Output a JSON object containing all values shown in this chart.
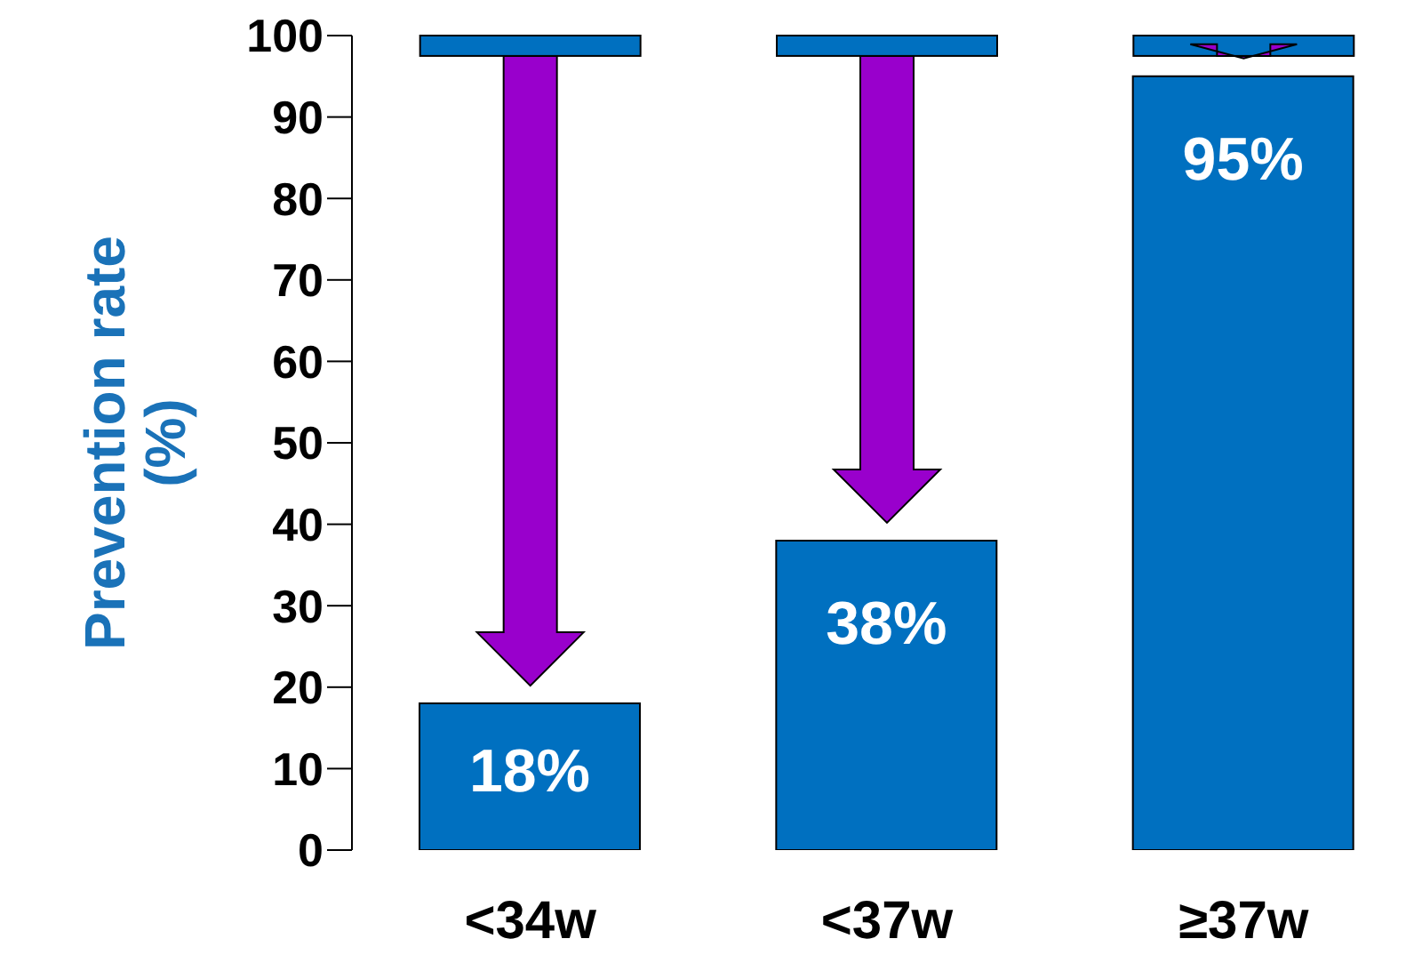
{
  "chart_data": {
    "type": "bar",
    "ylabel": "Prevention rate (%)",
    "categories": [
      "<34w",
      "<37w",
      "≥37w"
    ],
    "series": [
      {
        "color": "#0070c0",
        "values": [
          18,
          38,
          95
        ],
        "value_labels": [
          "18%",
          "38%",
          "95%"
        ]
      }
    ],
    "ylim": [
      0,
      100
    ],
    "yticks": [
      0,
      10,
      20,
      30,
      40,
      50,
      60,
      70,
      80,
      90,
      100
    ]
  }
}
